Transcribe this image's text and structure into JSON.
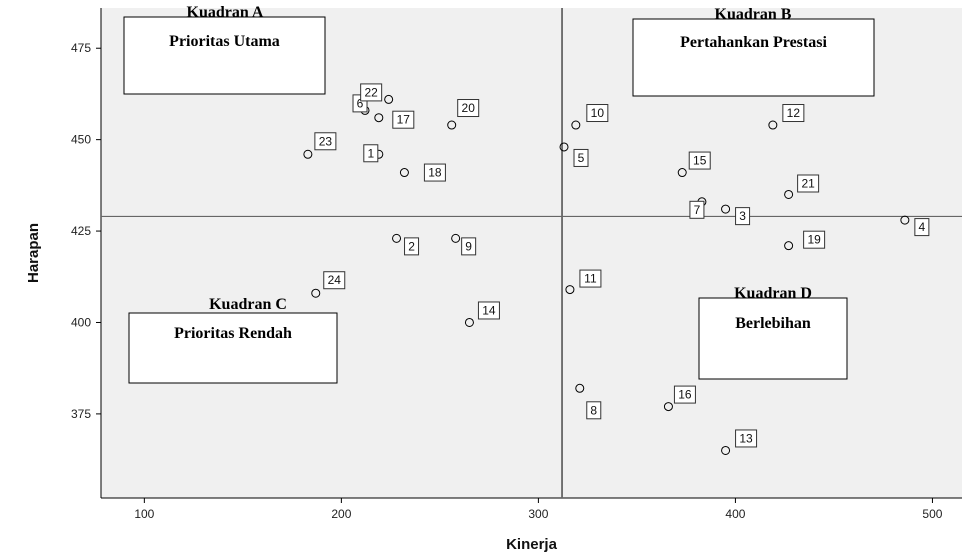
{
  "chart_data": {
    "type": "scatter",
    "title": "",
    "xlabel": "Kinerja",
    "ylabel": "Harapan",
    "xlim": [
      78,
      515
    ],
    "ylim": [
      352,
      486
    ],
    "xticks": [
      100,
      200,
      300,
      400,
      500
    ],
    "yticks": [
      375,
      400,
      425,
      450,
      475
    ],
    "grid": false,
    "reference_lines": {
      "x": 312,
      "y": 429
    },
    "points": [
      {
        "label": "1",
        "x": 219,
        "y": 446
      },
      {
        "label": "2",
        "x": 228,
        "y": 423
      },
      {
        "label": "3",
        "x": 395,
        "y": 431
      },
      {
        "label": "4",
        "x": 486,
        "y": 428
      },
      {
        "label": "5",
        "x": 313,
        "y": 448
      },
      {
        "label": "6",
        "x": 212,
        "y": 458
      },
      {
        "label": "7",
        "x": 383,
        "y": 433
      },
      {
        "label": "8",
        "x": 321,
        "y": 382
      },
      {
        "label": "9",
        "x": 258,
        "y": 423
      },
      {
        "label": "10",
        "x": 319,
        "y": 454
      },
      {
        "label": "11",
        "x": 316,
        "y": 409
      },
      {
        "label": "12",
        "x": 419,
        "y": 454
      },
      {
        "label": "13",
        "x": 395,
        "y": 365
      },
      {
        "label": "14",
        "x": 265,
        "y": 400
      },
      {
        "label": "15",
        "x": 373,
        "y": 441
      },
      {
        "label": "16",
        "x": 366,
        "y": 377
      },
      {
        "label": "17",
        "x": 219,
        "y": 456
      },
      {
        "label": "18",
        "x": 232,
        "y": 441
      },
      {
        "label": "19",
        "x": 427,
        "y": 421
      },
      {
        "label": "20",
        "x": 256,
        "y": 454
      },
      {
        "label": "21",
        "x": 427,
        "y": 435
      },
      {
        "label": "22",
        "x": 224,
        "y": 461
      },
      {
        "label": "23",
        "x": 183,
        "y": 446
      },
      {
        "label": "24",
        "x": 187,
        "y": 408
      }
    ],
    "quadrants": [
      {
        "title": "Kuadran A",
        "subtitle": "Prioritas Utama"
      },
      {
        "title": "Kuadran B",
        "subtitle": "Pertahankan Prestasi"
      },
      {
        "title": "Kuadran C",
        "subtitle": "Prioritas Rendah"
      },
      {
        "title": "Kuadran D",
        "subtitle": "Berlebihan"
      }
    ],
    "colors": {
      "plot_bg": "#f0f0f0",
      "axis": "#000000",
      "marker": "#000000"
    }
  }
}
